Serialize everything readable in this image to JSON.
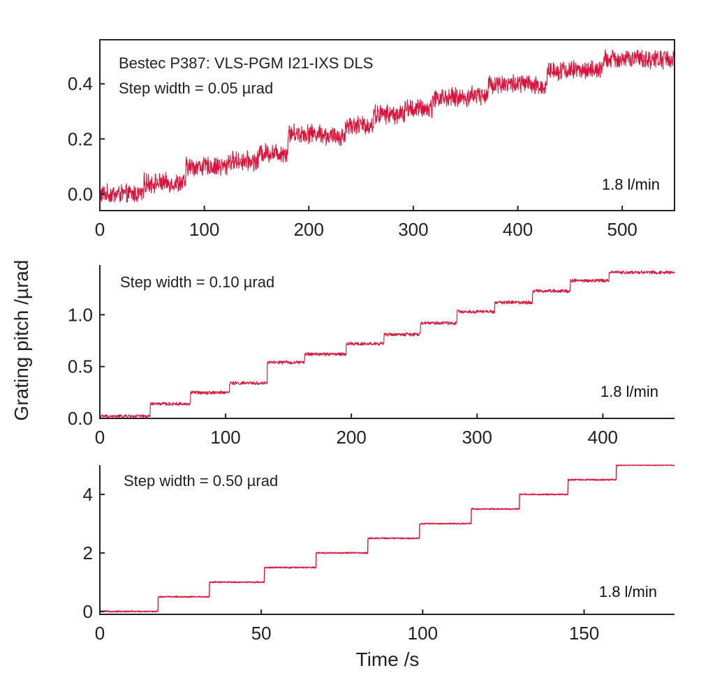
{
  "figure": {
    "ylabel": "Grating pitch /µrad",
    "xlabel": "Time /s",
    "trace_color": "#dc143c",
    "axis_color": "#222222"
  },
  "chart_data": [
    {
      "type": "line",
      "annotations": [
        "Bestec P387: VLS-PGM I21-IXS DLS",
        "Step width = 0.05 µrad"
      ],
      "flow_label": "1.8 l/min",
      "xlim": [
        0,
        550
      ],
      "ylim": [
        -0.06,
        0.56
      ],
      "xticks": [
        0,
        100,
        200,
        300,
        400,
        500
      ],
      "xtick_labels": [
        "0",
        "100",
        "200",
        "300",
        "400",
        "500"
      ],
      "yticks": [
        0.0,
        0.2,
        0.4
      ],
      "ytick_labels": [
        "0.0",
        "0.2",
        "0.4"
      ],
      "step_width": 0.05,
      "noise_amplitude": 0.03,
      "steps": [
        {
          "t": 0,
          "y": 0.0
        },
        {
          "t": 42,
          "y": 0.04
        },
        {
          "t": 82,
          "y": 0.1
        },
        {
          "t": 122,
          "y": 0.12
        },
        {
          "t": 152,
          "y": 0.15
        },
        {
          "t": 180,
          "y": 0.22
        },
        {
          "t": 215,
          "y": 0.21
        },
        {
          "t": 235,
          "y": 0.25
        },
        {
          "t": 262,
          "y": 0.29
        },
        {
          "t": 292,
          "y": 0.31
        },
        {
          "t": 318,
          "y": 0.35
        },
        {
          "t": 355,
          "y": 0.36
        },
        {
          "t": 372,
          "y": 0.4
        },
        {
          "t": 412,
          "y": 0.39
        },
        {
          "t": 428,
          "y": 0.45
        },
        {
          "t": 482,
          "y": 0.49
        },
        {
          "t": 550,
          "y": 0.49
        }
      ]
    },
    {
      "type": "line",
      "annotations": [
        "Step width = 0.10 µrad"
      ],
      "flow_label": "1.8 l/min",
      "xlim": [
        0,
        457
      ],
      "ylim": [
        0,
        1.48
      ],
      "xticks": [
        0,
        100,
        200,
        300,
        400
      ],
      "xtick_labels": [
        "0",
        "100",
        "200",
        "300",
        "400"
      ],
      "yticks": [
        0.0,
        0.5,
        1.0
      ],
      "ytick_labels": [
        "0.0",
        "0.5",
        "1.0"
      ],
      "step_width": 0.1,
      "noise_amplitude": 0.015,
      "steps": [
        {
          "t": 0,
          "y": 0.02
        },
        {
          "t": 40,
          "y": 0.14
        },
        {
          "t": 72,
          "y": 0.25
        },
        {
          "t": 103,
          "y": 0.34
        },
        {
          "t": 133,
          "y": 0.54
        },
        {
          "t": 163,
          "y": 0.62
        },
        {
          "t": 196,
          "y": 0.72
        },
        {
          "t": 226,
          "y": 0.81
        },
        {
          "t": 255,
          "y": 0.92
        },
        {
          "t": 284,
          "y": 1.03
        },
        {
          "t": 314,
          "y": 1.12
        },
        {
          "t": 344,
          "y": 1.23
        },
        {
          "t": 374,
          "y": 1.33
        },
        {
          "t": 405,
          "y": 1.41
        },
        {
          "t": 457,
          "y": 1.41
        }
      ]
    },
    {
      "type": "line",
      "annotations": [
        "Step width = 0.50 µrad"
      ],
      "flow_label": "1.8 l/min",
      "xlim": [
        0,
        178
      ],
      "ylim": [
        -0.1,
        5.0
      ],
      "xticks": [
        0,
        50,
        100,
        150
      ],
      "xtick_labels": [
        "0",
        "50",
        "100",
        "150"
      ],
      "yticks": [
        0,
        2,
        4
      ],
      "ytick_labels": [
        "0",
        "2",
        "4"
      ],
      "step_width": 0.5,
      "noise_amplitude": 0.02,
      "steps": [
        {
          "t": 0,
          "y": 0.0
        },
        {
          "t": 18,
          "y": 0.5
        },
        {
          "t": 34,
          "y": 1.0
        },
        {
          "t": 51,
          "y": 1.5
        },
        {
          "t": 67,
          "y": 2.0
        },
        {
          "t": 83,
          "y": 2.5
        },
        {
          "t": 99,
          "y": 3.0
        },
        {
          "t": 115,
          "y": 3.5
        },
        {
          "t": 130,
          "y": 4.0
        },
        {
          "t": 145,
          "y": 4.5
        },
        {
          "t": 160,
          "y": 5.0
        },
        {
          "t": 178,
          "y": 5.0
        }
      ]
    }
  ]
}
